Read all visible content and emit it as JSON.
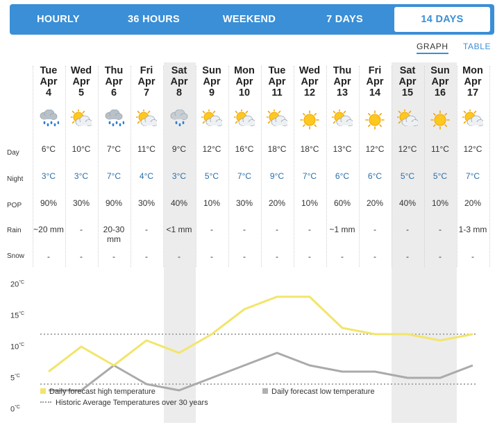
{
  "tabs": [
    {
      "label": "HOURLY",
      "active": false
    },
    {
      "label": "36 HOURS",
      "active": false
    },
    {
      "label": "WEEKEND",
      "active": false
    },
    {
      "label": "7 DAYS",
      "active": false
    },
    {
      "label": "14 DAYS",
      "active": true
    }
  ],
  "view_toggle": {
    "graph": "GRAPH",
    "table": "TABLE",
    "active": "GRAPH"
  },
  "row_labels": {
    "day": "Day",
    "night": "Night",
    "pop": "POP",
    "rain": "Rain",
    "snow": "Snow"
  },
  "days": [
    {
      "dow": "Tue",
      "mon": "Apr",
      "date": "4",
      "icon": "rain-cloud-icon",
      "day": "6°C",
      "night": "3°C",
      "pop": "90%",
      "rain": "~20 mm",
      "snow": "-",
      "weekend": false
    },
    {
      "dow": "Wed",
      "mon": "Apr",
      "date": "5",
      "icon": "sun-cloud-icon",
      "day": "10°C",
      "night": "3°C",
      "pop": "30%",
      "rain": "-",
      "snow": "-",
      "weekend": false
    },
    {
      "dow": "Thu",
      "mon": "Apr",
      "date": "6",
      "icon": "rain-cloud-icon",
      "day": "7°C",
      "night": "7°C",
      "pop": "90%",
      "rain": "20-30 mm",
      "snow": "-",
      "weekend": false
    },
    {
      "dow": "Fri",
      "mon": "Apr",
      "date": "7",
      "icon": "sun-cloud-icon",
      "day": "11°C",
      "night": "4°C",
      "pop": "30%",
      "rain": "-",
      "snow": "-",
      "weekend": false
    },
    {
      "dow": "Sat",
      "mon": "Apr",
      "date": "8",
      "icon": "light-rain-cloud-icon",
      "day": "9°C",
      "night": "3°C",
      "pop": "40%",
      "rain": "<1 mm",
      "snow": "-",
      "weekend": true
    },
    {
      "dow": "Sun",
      "mon": "Apr",
      "date": "9",
      "icon": "sun-cloud-icon",
      "day": "12°C",
      "night": "5°C",
      "pop": "10%",
      "rain": "-",
      "snow": "-",
      "weekend": false
    },
    {
      "dow": "Mon",
      "mon": "Apr",
      "date": "10",
      "icon": "sun-cloud-icon",
      "day": "16°C",
      "night": "7°C",
      "pop": "30%",
      "rain": "-",
      "snow": "-",
      "weekend": false
    },
    {
      "dow": "Tue",
      "mon": "Apr",
      "date": "11",
      "icon": "sun-cloud-icon",
      "day": "18°C",
      "night": "9°C",
      "pop": "20%",
      "rain": "-",
      "snow": "-",
      "weekend": false
    },
    {
      "dow": "Wed",
      "mon": "Apr",
      "date": "12",
      "icon": "sun-icon",
      "day": "18°C",
      "night": "7°C",
      "pop": "10%",
      "rain": "-",
      "snow": "-",
      "weekend": false
    },
    {
      "dow": "Thu",
      "mon": "Apr",
      "date": "13",
      "icon": "sun-cloud-icon",
      "day": "13°C",
      "night": "6°C",
      "pop": "60%",
      "rain": "~1 mm",
      "snow": "-",
      "weekend": false
    },
    {
      "dow": "Fri",
      "mon": "Apr",
      "date": "14",
      "icon": "sun-icon",
      "day": "12°C",
      "night": "6°C",
      "pop": "20%",
      "rain": "-",
      "snow": "-",
      "weekend": false
    },
    {
      "dow": "Sat",
      "mon": "Apr",
      "date": "15",
      "icon": "sun-cloud-icon",
      "day": "12°C",
      "night": "5°C",
      "pop": "40%",
      "rain": "-",
      "snow": "-",
      "weekend": true
    },
    {
      "dow": "Sun",
      "mon": "Apr",
      "date": "16",
      "icon": "sun-icon",
      "day": "11°C",
      "night": "5°C",
      "pop": "10%",
      "rain": "-",
      "snow": "-",
      "weekend": true
    },
    {
      "dow": "Mon",
      "mon": "Apr",
      "date": "17",
      "icon": "sun-cloud-icon",
      "day": "12°C",
      "night": "7°C",
      "pop": "20%",
      "rain": "1-3 mm",
      "snow": "-",
      "weekend": false
    }
  ],
  "chart_data": {
    "type": "line",
    "x": [
      "Tue Apr 4",
      "Wed Apr 5",
      "Thu Apr 6",
      "Fri Apr 7",
      "Sat Apr 8",
      "Sun Apr 9",
      "Mon Apr 10",
      "Tue Apr 11",
      "Wed Apr 12",
      "Thu Apr 13",
      "Fri Apr 14",
      "Sat Apr 15",
      "Sun Apr 16",
      "Mon Apr 17"
    ],
    "series": [
      {
        "name": "Daily forecast high temperature",
        "values": [
          6,
          10,
          7,
          11,
          9,
          12,
          16,
          18,
          18,
          13,
          12,
          12,
          11,
          12
        ],
        "color": "#f2e56b"
      },
      {
        "name": "Daily forecast low temperature",
        "values": [
          3,
          3,
          7,
          4,
          3,
          5,
          7,
          9,
          7,
          6,
          6,
          5,
          5,
          7
        ],
        "color": "#aaaaaa"
      }
    ],
    "reference_lines": [
      {
        "name": "Historic Average Temperatures over 30 years",
        "values": [
          12,
          4
        ],
        "style": "dotted",
        "color": "#a8a8a8"
      }
    ],
    "y_ticks": [
      "20°C",
      "15°C",
      "10°C",
      "5°C",
      "0°C"
    ],
    "ylim": [
      0,
      20
    ],
    "legend_placement": "bottom-left"
  },
  "colors": {
    "accent": "#3a8fd6",
    "high": "#f2e56b",
    "low": "#aaaaaa",
    "weekend_shade": "#ececec"
  }
}
